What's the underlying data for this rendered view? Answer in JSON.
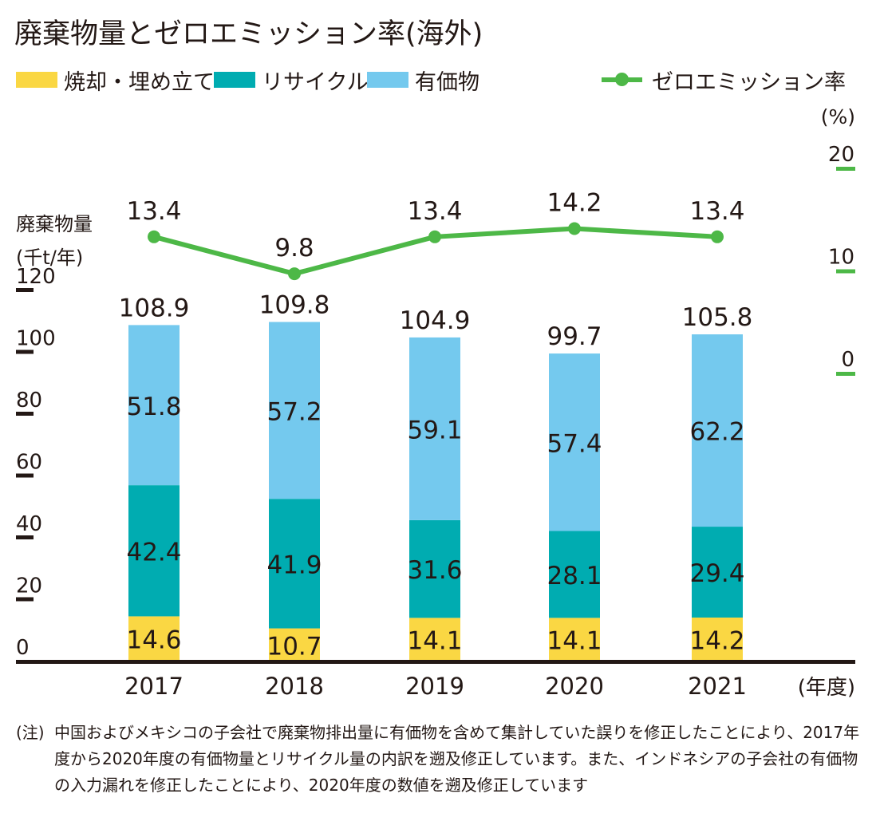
{
  "title": "廃棄物量とゼロエミッション率(海外)",
  "legend": {
    "incineration": "焼却・埋め立て",
    "recycle": "リサイクル",
    "valuables": "有価物",
    "zero_emission": "ゼロエミッション率"
  },
  "colors": {
    "incineration": "#fad743",
    "recycle": "#00acb1",
    "valuables": "#74c9ee",
    "line": "#4db847",
    "axis": "#231815"
  },
  "chart_data": {
    "type": "bar",
    "stacked": true,
    "categories": [
      "2017",
      "2018",
      "2019",
      "2020",
      "2021"
    ],
    "series": [
      {
        "name": "焼却・埋め立て",
        "values": [
          14.6,
          10.7,
          14.1,
          14.1,
          14.2
        ]
      },
      {
        "name": "リサイクル",
        "values": [
          42.4,
          41.9,
          31.6,
          28.1,
          29.4
        ]
      },
      {
        "name": "有価物",
        "values": [
          51.8,
          57.2,
          59.1,
          57.4,
          62.2
        ]
      }
    ],
    "totals": [
      "108.9",
      "109.8",
      "104.9",
      "99.7",
      "105.8"
    ],
    "line_series": {
      "name": "ゼロエミッション率",
      "values": [
        13.4,
        9.8,
        13.4,
        14.2,
        13.4
      ],
      "labels": [
        "13.4",
        "9.8",
        "13.4",
        "14.2",
        "13.4"
      ]
    },
    "ylabel_line1": "廃棄物量",
    "ylabel_line2": "(千t/年)",
    "y_ticks": [
      "0",
      "20",
      "40",
      "60",
      "80",
      "100",
      "120"
    ],
    "y_tick_values": [
      0,
      20,
      40,
      60,
      80,
      100,
      120
    ],
    "ylim": [
      0,
      120
    ],
    "y2_unit": "(%)",
    "y2_ticks": [
      "0",
      "10",
      "20"
    ],
    "y2_tick_values": [
      0,
      10,
      20
    ],
    "y2lim": [
      0,
      20
    ],
    "xlabel": "(年度)"
  },
  "footnote": {
    "label": "(注)",
    "text": "中国およびメキシコの子会社で廃棄物排出量に有価物を含めて集計していた誤りを修正したことにより、2017年度から2020年度の有価物量とリサイクル量の内訳を遡及修正しています。また、インドネシアの子会社の有価物の入力漏れを修正したことにより、2020年度の数値を遡及修正しています"
  }
}
